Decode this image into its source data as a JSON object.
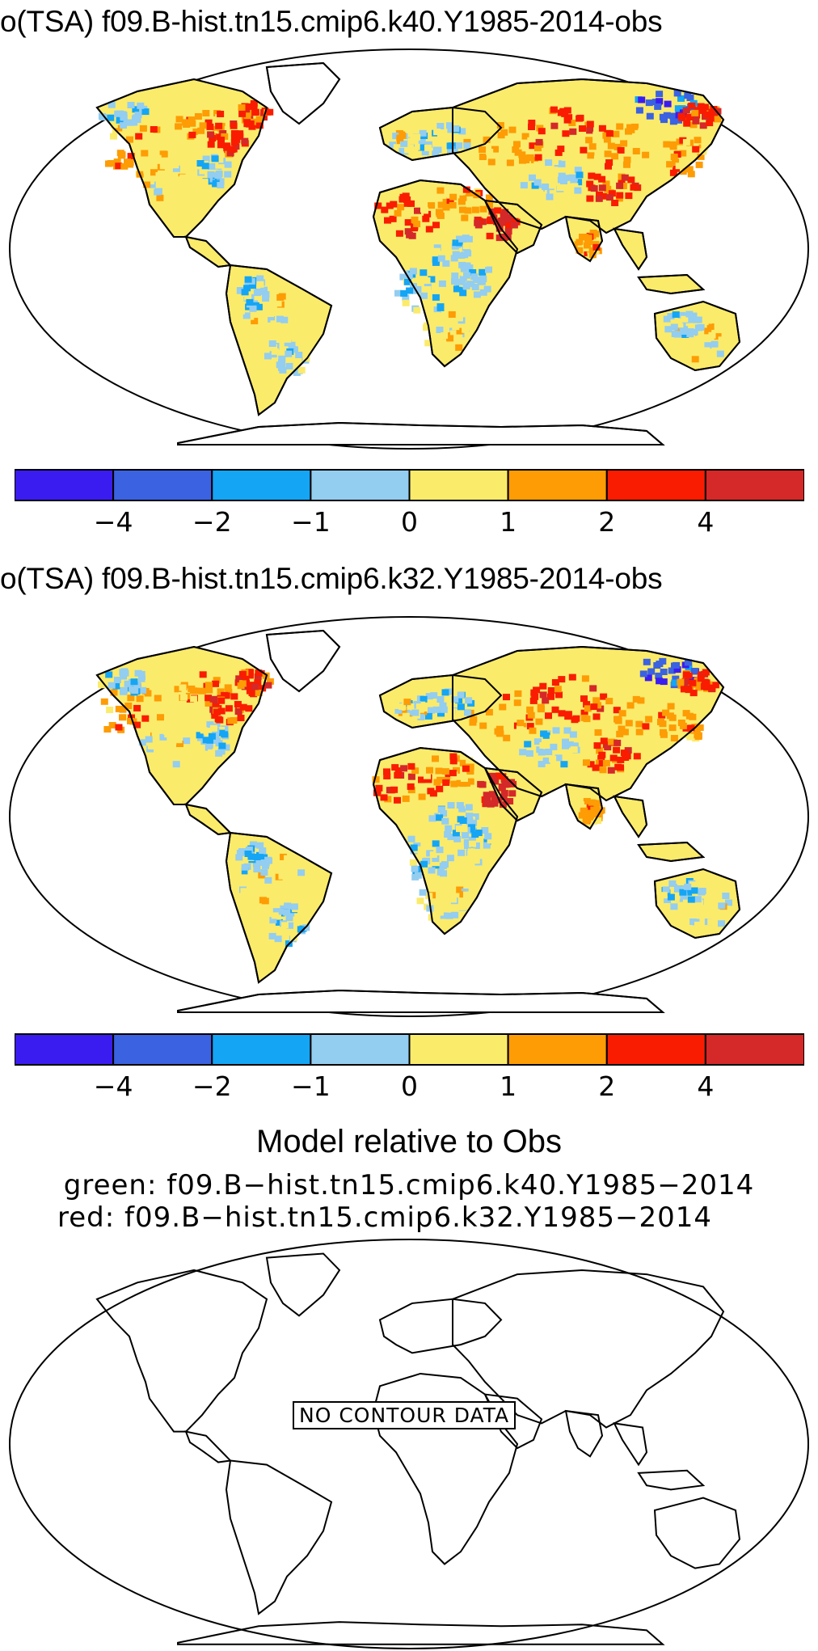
{
  "panel1": {
    "title": "o(TSA) f09.B-hist.tn15.cmip6.k40.Y1985-2014-obs"
  },
  "panel2": {
    "title": "o(TSA) f09.B-hist.tn15.cmip6.k32.Y1985-2014-obs"
  },
  "colorbar": {
    "colors": [
      "#3b1cf0",
      "#3b62e0",
      "#14a5f5",
      "#93cdf0",
      "#fbeb6b",
      "#fd9c05",
      "#f91c00",
      "#d52828"
    ],
    "tick_labels": [
      "−4",
      "−2",
      "−1",
      "0",
      "1",
      "2",
      "4"
    ]
  },
  "panel3": {
    "heading": "Model relative to Obs",
    "line_green": "green: f09.B−hist.tn15.cmip6.k40.Y1985−2014",
    "line_red": "red: f09.B−hist.tn15.cmip6.k32.Y1985−2014",
    "no_data": "NO CONTOUR DATA"
  }
}
